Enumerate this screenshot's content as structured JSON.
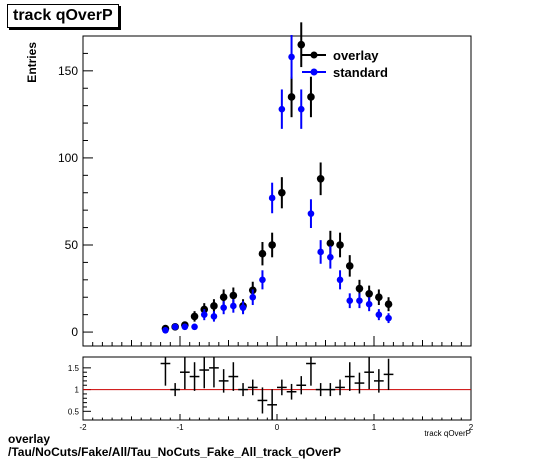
{
  "chart_data": {
    "type": "scatter",
    "title": "track qOverP",
    "ylabel": "Entries",
    "xlabel": "track qOverP",
    "xlim": [
      -2,
      2
    ],
    "ylim": [
      -8,
      170
    ],
    "ratio_ylim": [
      0.3,
      1.75
    ],
    "x_ticks": [
      "-2",
      "-1",
      "0",
      "1",
      "2"
    ],
    "y_ticks": [
      "0",
      "50",
      "100",
      "150"
    ],
    "ratio_ticks": [
      "0.5",
      "1",
      "1.5"
    ],
    "x": [
      -1.15,
      -1.05,
      -0.95,
      -0.85,
      -0.75,
      -0.65,
      -0.55,
      -0.45,
      -0.35,
      -0.25,
      -0.15,
      -0.05,
      0.05,
      0.15,
      0.25,
      0.35,
      0.45,
      0.55,
      0.65,
      0.75,
      0.85,
      0.95,
      1.05,
      1.15
    ],
    "series": [
      {
        "name": "overlay",
        "color": "#000000",
        "marker": "circle",
        "values": [
          2,
          3,
          4,
          9,
          13,
          15,
          20,
          21,
          15,
          24,
          45,
          50,
          80,
          135,
          165,
          135,
          88,
          51,
          50,
          38,
          25,
          22,
          20,
          16
        ]
      },
      {
        "name": "standard",
        "color": "#0000ff",
        "marker": "circle",
        "values": [
          1,
          3,
          3,
          3,
          10,
          9,
          14,
          15,
          14,
          20,
          30,
          77,
          128,
          158,
          128,
          68,
          46,
          43,
          30,
          18,
          18,
          16,
          10,
          8
        ]
      }
    ],
    "ratio": [
      1.6,
      1.0,
      1.4,
      1.3,
      1.45,
      1.5,
      1.2,
      1.3,
      1.0,
      1.05,
      0.75,
      0.65,
      1.05,
      0.95,
      1.1,
      1.6,
      1.0,
      1.0,
      1.05,
      1.3,
      1.15,
      1.4,
      1.2,
      1.35
    ],
    "legend_position": "top-right"
  },
  "footer": {
    "line1": "overlay",
    "line2": "/Tau/NoCuts/Fake/All/Tau_NoCuts_Fake_All_track_qOverP"
  }
}
